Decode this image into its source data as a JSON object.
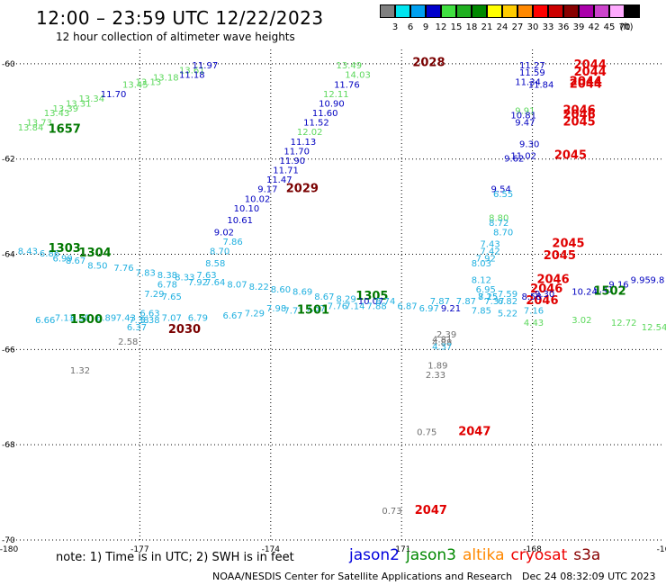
{
  "title": "12:00 – 23:59 UTC 12/22/2023",
  "subtitle": "12 hour collection of altimeter wave heights",
  "color_scale": {
    "unit": "(ft)",
    "levels": [
      {
        "label": "3",
        "color": "#808080"
      },
      {
        "label": "6",
        "color": "#00e5f0"
      },
      {
        "label": "9",
        "color": "#00a0f0"
      },
      {
        "label": "12",
        "color": "#0000cc"
      },
      {
        "label": "15",
        "color": "#40e040"
      },
      {
        "label": "18",
        "color": "#20b020"
      },
      {
        "label": "21",
        "color": "#008800"
      },
      {
        "label": "24",
        "color": "#ffff00"
      },
      {
        "label": "27",
        "color": "#ffcc00"
      },
      {
        "label": "30",
        "color": "#ff8800"
      },
      {
        "label": "33",
        "color": "#ff0000"
      },
      {
        "label": "36",
        "color": "#cc0000"
      },
      {
        "label": "39",
        "color": "#880000"
      },
      {
        "label": "42",
        "color": "#aa00aa"
      },
      {
        "label": "45",
        "color": "#cc44cc"
      },
      {
        "label": "70",
        "color": "#ffaaff"
      },
      {
        "label": "",
        "color": "#000000"
      }
    ]
  },
  "map": {
    "lon_min": -180,
    "lon_max": -165,
    "lat_min": -70,
    "lat_max": -59.7,
    "lon_labels": [
      {
        "lon": -180,
        "label": "-180"
      },
      {
        "lon": -177,
        "label": "-177"
      },
      {
        "lon": -174,
        "label": "-174"
      },
      {
        "lon": -171,
        "label": "-171"
      },
      {
        "lon": -168,
        "label": "-168"
      },
      {
        "lon": -165,
        "label": "-16"
      }
    ],
    "lat_labels": [
      {
        "lat": -60,
        "label": "-60"
      },
      {
        "lat": -62,
        "label": "-62"
      },
      {
        "lat": -64,
        "label": "-64"
      },
      {
        "lat": -66,
        "label": "-66"
      },
      {
        "lat": -68,
        "label": "-68"
      },
      {
        "lat": -70,
        "label": "-70"
      }
    ]
  },
  "colors": {
    "grey": "#707070",
    "cyan": "#20b0e0",
    "blue": "#0000c0",
    "lightgreen": "#5cd85c",
    "green": "#007700",
    "darkred": "#7a0000",
    "red": "#e00000"
  },
  "observations": [
    {
      "lon": -179.8,
      "lat": -61.4,
      "text": "13.84",
      "c": "lightgreen"
    },
    {
      "lon": -179.6,
      "lat": -61.3,
      "text": "13.73",
      "c": "lightgreen"
    },
    {
      "lon": -179.2,
      "lat": -61.1,
      "text": "13.43",
      "c": "lightgreen"
    },
    {
      "lon": -179.0,
      "lat": -61.0,
      "text": "13.39",
      "c": "lightgreen"
    },
    {
      "lon": -178.7,
      "lat": -60.9,
      "text": "13.31",
      "c": "lightgreen"
    },
    {
      "lon": -178.4,
      "lat": -60.8,
      "text": "13.34",
      "c": "lightgreen"
    },
    {
      "lon": -177.4,
      "lat": -60.5,
      "text": "13.45",
      "c": "lightgreen"
    },
    {
      "lon": -177.1,
      "lat": -60.45,
      "text": "13.13",
      "c": "lightgreen"
    },
    {
      "lon": -176.7,
      "lat": -60.35,
      "text": "13.18",
      "c": "lightgreen"
    },
    {
      "lon": -176.1,
      "lat": -60.2,
      "text": "13.61",
      "c": "lightgreen"
    },
    {
      "lon": -177.9,
      "lat": -60.7,
      "text": "11.70",
      "c": "blue"
    },
    {
      "lon": -176.1,
      "lat": -60.3,
      "text": "11.18",
      "c": "blue"
    },
    {
      "lon": -175.8,
      "lat": -60.1,
      "text": "11.97",
      "c": "blue"
    },
    {
      "lon": -179.1,
      "lat": -61.45,
      "text": "1657",
      "c": "green",
      "stat": true
    },
    {
      "lon": -172.5,
      "lat": -60.1,
      "text": "13.49",
      "c": "lightgreen"
    },
    {
      "lon": -172.3,
      "lat": -60.3,
      "text": "14.03",
      "c": "lightgreen"
    },
    {
      "lon": -170.75,
      "lat": -60.05,
      "text": "2028",
      "c": "darkred",
      "stat": true
    },
    {
      "lon": -172.55,
      "lat": -60.5,
      "text": "11.76",
      "c": "blue"
    },
    {
      "lon": -172.8,
      "lat": -60.7,
      "text": "12.11",
      "c": "lightgreen"
    },
    {
      "lon": -172.9,
      "lat": -60.9,
      "text": "10.90",
      "c": "blue"
    },
    {
      "lon": -173.05,
      "lat": -61.1,
      "text": "11.60",
      "c": "blue"
    },
    {
      "lon": -173.25,
      "lat": -61.3,
      "text": "11.52",
      "c": "blue"
    },
    {
      "lon": -173.4,
      "lat": -61.5,
      "text": "12.02",
      "c": "lightgreen"
    },
    {
      "lon": -173.55,
      "lat": -61.7,
      "text": "11.13",
      "c": "blue"
    },
    {
      "lon": -173.7,
      "lat": -61.9,
      "text": "11.70",
      "c": "blue"
    },
    {
      "lon": -173.8,
      "lat": -62.1,
      "text": "11.90",
      "c": "blue"
    },
    {
      "lon": -173.95,
      "lat": -62.3,
      "text": "11.71",
      "c": "blue"
    },
    {
      "lon": -174.1,
      "lat": -62.5,
      "text": "11.47",
      "c": "blue"
    },
    {
      "lon": -174.3,
      "lat": -62.7,
      "text": "9.17",
      "c": "blue"
    },
    {
      "lon": -173.65,
      "lat": -62.7,
      "text": "2029",
      "c": "darkred",
      "stat": true
    },
    {
      "lon": -174.6,
      "lat": -62.9,
      "text": "10.02",
      "c": "blue"
    },
    {
      "lon": -174.85,
      "lat": -63.1,
      "text": "10.10",
      "c": "blue"
    },
    {
      "lon": -175.0,
      "lat": -63.35,
      "text": "10.61",
      "c": "blue"
    },
    {
      "lon": -175.3,
      "lat": -63.6,
      "text": "9.02",
      "c": "blue"
    },
    {
      "lon": -175.1,
      "lat": -63.8,
      "text": "7.86",
      "c": "cyan"
    },
    {
      "lon": -175.4,
      "lat": -64.0,
      "text": "8.70",
      "c": "cyan"
    },
    {
      "lon": -175.5,
      "lat": -64.25,
      "text": "8.58",
      "c": "cyan"
    },
    {
      "lon": -175.7,
      "lat": -64.5,
      "text": "7.63",
      "c": "cyan"
    },
    {
      "lon": -179.8,
      "lat": -64.0,
      "text": "8.43",
      "c": "cyan"
    },
    {
      "lon": -179.3,
      "lat": -64.05,
      "text": "6.86",
      "c": "cyan"
    },
    {
      "lon": -179.0,
      "lat": -64.15,
      "text": "6.99",
      "c": "cyan"
    },
    {
      "lon": -178.7,
      "lat": -64.2,
      "text": "8.67",
      "c": "cyan"
    },
    {
      "lon": -178.2,
      "lat": -64.3,
      "text": "8.50",
      "c": "cyan"
    },
    {
      "lon": -177.6,
      "lat": -64.35,
      "text": "7.76",
      "c": "cyan"
    },
    {
      "lon": -177.1,
      "lat": -64.45,
      "text": "7.83",
      "c": "cyan"
    },
    {
      "lon": -176.6,
      "lat": -64.5,
      "text": "8.38",
      "c": "cyan"
    },
    {
      "lon": -176.2,
      "lat": -64.55,
      "text": "8.33",
      "c": "cyan"
    },
    {
      "lon": -175.9,
      "lat": -64.65,
      "text": "7.92",
      "c": "cyan"
    },
    {
      "lon": -175.5,
      "lat": -64.65,
      "text": "7.64",
      "c": "cyan"
    },
    {
      "lon": -175.0,
      "lat": -64.7,
      "text": "8.07",
      "c": "cyan"
    },
    {
      "lon": -174.5,
      "lat": -64.75,
      "text": "8.22",
      "c": "cyan"
    },
    {
      "lon": -174.0,
      "lat": -64.8,
      "text": "8.60",
      "c": "cyan"
    },
    {
      "lon": -173.5,
      "lat": -64.85,
      "text": "8.69",
      "c": "cyan"
    },
    {
      "lon": -173.0,
      "lat": -64.95,
      "text": "8.67",
      "c": "cyan"
    },
    {
      "lon": -172.5,
      "lat": -65.0,
      "text": "8.29",
      "c": "cyan"
    },
    {
      "lon": -179.1,
      "lat": -63.95,
      "text": "1303",
      "c": "green",
      "stat": true
    },
    {
      "lon": -178.4,
      "lat": -64.05,
      "text": "1304",
      "c": "green",
      "stat": true
    },
    {
      "lon": -172.05,
      "lat": -64.95,
      "text": "1305",
      "c": "green",
      "stat": true
    },
    {
      "lon": -172.0,
      "lat": -65.05,
      "text": "10.07",
      "c": "blue"
    },
    {
      "lon": -171.6,
      "lat": -65.05,
      "text": "8.74",
      "c": "cyan"
    },
    {
      "lon": -171.1,
      "lat": -65.15,
      "text": "6.87",
      "c": "cyan"
    },
    {
      "lon": -170.6,
      "lat": -65.2,
      "text": "6.97",
      "c": "cyan"
    },
    {
      "lon": -170.35,
      "lat": -65.05,
      "text": "7.87",
      "c": "cyan"
    },
    {
      "lon": -169.75,
      "lat": -65.05,
      "text": "7.87",
      "c": "cyan"
    },
    {
      "lon": -170.1,
      "lat": -65.2,
      "text": "9.21",
      "c": "blue"
    },
    {
      "lon": -169.25,
      "lat": -64.95,
      "text": "8.25",
      "c": "cyan"
    },
    {
      "lon": -168.8,
      "lat": -64.9,
      "text": "7.59",
      "c": "cyan"
    },
    {
      "lon": -169.4,
      "lat": -65.25,
      "text": "7.85",
      "c": "cyan"
    },
    {
      "lon": -168.8,
      "lat": -65.3,
      "text": "5.22",
      "c": "cyan"
    },
    {
      "lon": -168.2,
      "lat": -65.25,
      "text": "7.16",
      "c": "cyan"
    },
    {
      "lon": -168.2,
      "lat": -65.5,
      "text": "4.43",
      "c": "lightgreen"
    },
    {
      "lon": -167.1,
      "lat": -65.45,
      "text": "3.02",
      "c": "lightgreen"
    },
    {
      "lon": -166.2,
      "lat": -65.5,
      "text": "12.72",
      "c": "lightgreen"
    },
    {
      "lon": -165.5,
      "lat": -65.6,
      "text": "12.54",
      "c": "lightgreen"
    },
    {
      "lon": -176.9,
      "lat": -64.9,
      "text": "7.29",
      "c": "cyan"
    },
    {
      "lon": -176.6,
      "lat": -64.7,
      "text": "6.78",
      "c": "cyan"
    },
    {
      "lon": -176.5,
      "lat": -64.95,
      "text": "7.65",
      "c": "cyan"
    },
    {
      "lon": -177.0,
      "lat": -65.3,
      "text": "6.63",
      "c": "cyan"
    },
    {
      "lon": -176.5,
      "lat": -65.4,
      "text": "7.07",
      "c": "cyan"
    },
    {
      "lon": -175.9,
      "lat": -65.4,
      "text": "6.79",
      "c": "cyan"
    },
    {
      "lon": -175.1,
      "lat": -65.35,
      "text": "6.67",
      "c": "cyan"
    },
    {
      "lon": -174.6,
      "lat": -65.3,
      "text": "7.29",
      "c": "cyan"
    },
    {
      "lon": -174.1,
      "lat": -65.2,
      "text": "7.98",
      "c": "cyan"
    },
    {
      "lon": -173.7,
      "lat": -65.25,
      "text": "7.71",
      "c": "cyan"
    },
    {
      "lon": -173.2,
      "lat": -65.2,
      "text": "7.57",
      "c": "cyan"
    },
    {
      "lon": -172.7,
      "lat": -65.15,
      "text": "7.76",
      "c": "cyan"
    },
    {
      "lon": -172.3,
      "lat": -65.15,
      "text": "7.14",
      "c": "cyan"
    },
    {
      "lon": -171.8,
      "lat": -65.15,
      "text": "7.88",
      "c": "cyan"
    },
    {
      "lon": -173.4,
      "lat": -65.25,
      "text": "1501",
      "c": "green",
      "stat": true
    },
    {
      "lon": -179.4,
      "lat": -65.45,
      "text": "6.66",
      "c": "cyan"
    },
    {
      "lon": -178.95,
      "lat": -65.4,
      "text": "7.13",
      "c": "cyan"
    },
    {
      "lon": -178.6,
      "lat": -65.4,
      "text": "6.30",
      "c": "cyan"
    },
    {
      "lon": -178.0,
      "lat": -65.4,
      "text": "6.89",
      "c": "cyan"
    },
    {
      "lon": -177.55,
      "lat": -65.4,
      "text": "7.43",
      "c": "cyan"
    },
    {
      "lon": -177.25,
      "lat": -65.45,
      "text": "7.38",
      "c": "cyan"
    },
    {
      "lon": -178.6,
      "lat": -65.45,
      "text": "1500",
      "c": "green",
      "stat": true
    },
    {
      "lon": -177.0,
      "lat": -65.45,
      "text": "5.38",
      "c": "cyan"
    },
    {
      "lon": -177.3,
      "lat": -65.6,
      "text": "6.37",
      "c": "cyan"
    },
    {
      "lon": -176.35,
      "lat": -65.65,
      "text": "2030",
      "c": "darkred",
      "stat": true
    },
    {
      "lon": -177.5,
      "lat": -65.9,
      "text": "2.58",
      "c": "grey"
    },
    {
      "lon": -178.6,
      "lat": -66.5,
      "text": "1.32",
      "c": "grey"
    },
    {
      "lon": -168.3,
      "lat": -60.1,
      "text": "11.27",
      "c": "blue"
    },
    {
      "lon": -168.3,
      "lat": -60.25,
      "text": "11.59",
      "c": "blue"
    },
    {
      "lon": -168.4,
      "lat": -60.45,
      "text": "11.34",
      "c": "blue"
    },
    {
      "lon": -168.1,
      "lat": -60.5,
      "text": "11.84",
      "c": "blue"
    },
    {
      "lon": -167.05,
      "lat": -60.1,
      "text": "2044",
      "c": "red",
      "stat": true
    },
    {
      "lon": -167.05,
      "lat": -60.25,
      "text": "2044",
      "c": "red",
      "stat": true
    },
    {
      "lon": -167.15,
      "lat": -60.45,
      "text": "2044",
      "c": "red",
      "stat": true
    },
    {
      "lon": -167.15,
      "lat": -60.5,
      "text": "2044",
      "c": "red",
      "stat": true
    },
    {
      "lon": -168.4,
      "lat": -61.05,
      "text": "9.91",
      "c": "lightgreen"
    },
    {
      "lon": -168.5,
      "lat": -61.15,
      "text": "10.81",
      "c": "blue"
    },
    {
      "lon": -168.4,
      "lat": -61.3,
      "text": "9.47",
      "c": "blue"
    },
    {
      "lon": -167.3,
      "lat": -61.05,
      "text": "2046",
      "c": "red",
      "stat": true
    },
    {
      "lon": -167.3,
      "lat": -61.15,
      "text": "2046",
      "c": "red",
      "stat": true
    },
    {
      "lon": -167.3,
      "lat": -61.3,
      "text": "2045",
      "c": "red",
      "stat": true
    },
    {
      "lon": -168.3,
      "lat": -61.75,
      "text": "9.30",
      "c": "blue"
    },
    {
      "lon": -168.5,
      "lat": -62.0,
      "text": "11.02",
      "c": "blue"
    },
    {
      "lon": -168.65,
      "lat": -62.05,
      "text": "9.62",
      "c": "blue"
    },
    {
      "lon": -167.5,
      "lat": -62.0,
      "text": "2045",
      "c": "red",
      "stat": true
    },
    {
      "lon": -168.95,
      "lat": -62.7,
      "text": "9.54",
      "c": "blue"
    },
    {
      "lon": -168.9,
      "lat": -62.8,
      "text": "6.55",
      "c": "cyan"
    },
    {
      "lon": -169.0,
      "lat": -63.3,
      "text": "8.80",
      "c": "lightgreen"
    },
    {
      "lon": -169.0,
      "lat": -63.4,
      "text": "8.72",
      "c": "cyan"
    },
    {
      "lon": -168.9,
      "lat": -63.6,
      "text": "8.70",
      "c": "cyan"
    },
    {
      "lon": -169.2,
      "lat": -63.85,
      "text": "7.43",
      "c": "cyan"
    },
    {
      "lon": -169.2,
      "lat": -64.0,
      "text": "7.42",
      "c": "cyan"
    },
    {
      "lon": -169.3,
      "lat": -64.15,
      "text": "7.92",
      "c": "cyan"
    },
    {
      "lon": -169.4,
      "lat": -64.25,
      "text": "8.03",
      "c": "cyan"
    },
    {
      "lon": -167.55,
      "lat": -63.85,
      "text": "2045",
      "c": "red",
      "stat": true
    },
    {
      "lon": -167.75,
      "lat": -64.1,
      "text": "2045",
      "c": "red",
      "stat": true
    },
    {
      "lon": -169.4,
      "lat": -64.6,
      "text": "8.12",
      "c": "cyan"
    },
    {
      "lon": -169.3,
      "lat": -64.8,
      "text": "6.95",
      "c": "cyan"
    },
    {
      "lon": -169.25,
      "lat": -64.95,
      "text": "7.15",
      "c": "cyan"
    },
    {
      "lon": -169.1,
      "lat": -65.05,
      "text": "7.37",
      "c": "cyan"
    },
    {
      "lon": -168.8,
      "lat": -65.05,
      "text": "6.82",
      "c": "cyan"
    },
    {
      "lon": -167.9,
      "lat": -64.6,
      "text": "2046",
      "c": "red",
      "stat": true
    },
    {
      "lon": -168.05,
      "lat": -64.8,
      "text": "2046",
      "c": "red",
      "stat": true
    },
    {
      "lon": -168.15,
      "lat": -65.05,
      "text": "2046",
      "c": "red",
      "stat": true
    },
    {
      "lon": -168.25,
      "lat": -64.95,
      "text": "8.58",
      "c": "blue"
    },
    {
      "lon": -167.95,
      "lat": -64.9,
      "text": "9.30",
      "c": "blue"
    },
    {
      "lon": -167.1,
      "lat": -64.85,
      "text": "10.24",
      "c": "blue"
    },
    {
      "lon": -166.6,
      "lat": -64.8,
      "text": "9.41",
      "c": "blue"
    },
    {
      "lon": -166.25,
      "lat": -64.7,
      "text": "9.16",
      "c": "blue"
    },
    {
      "lon": -165.75,
      "lat": -64.6,
      "text": "9.95",
      "c": "blue"
    },
    {
      "lon": -165.3,
      "lat": -64.6,
      "text": "9.8",
      "c": "blue"
    },
    {
      "lon": -166.6,
      "lat": -64.85,
      "text": "1502",
      "c": "green",
      "stat": true
    },
    {
      "lon": -170.2,
      "lat": -65.75,
      "text": "2.39",
      "c": "grey"
    },
    {
      "lon": -170.3,
      "lat": -65.85,
      "text": "4.81",
      "c": "grey"
    },
    {
      "lon": -170.3,
      "lat": -65.92,
      "text": "4.88",
      "c": "grey"
    },
    {
      "lon": -170.3,
      "lat": -66.0,
      "text": "4.37",
      "c": "cyan"
    },
    {
      "lon": -170.4,
      "lat": -66.4,
      "text": "1.89",
      "c": "grey"
    },
    {
      "lon": -170.45,
      "lat": -66.6,
      "text": "2.33",
      "c": "grey"
    },
    {
      "lon": -170.65,
      "lat": -67.8,
      "text": "0.75",
      "c": "grey"
    },
    {
      "lon": -169.7,
      "lat": -67.8,
      "text": "2047",
      "c": "red",
      "stat": true
    },
    {
      "lon": -171.45,
      "lat": -69.45,
      "text": "0.73",
      "c": "grey"
    },
    {
      "lon": -170.7,
      "lat": -69.45,
      "text": "2047",
      "c": "red",
      "stat": true
    }
  ],
  "note": "note:  1) Time is in UTC;  2) SWH is in feet",
  "legend": [
    {
      "name": "jason2",
      "color": "#0000dd"
    },
    {
      "name": "jason3",
      "color": "#008800"
    },
    {
      "name": "altika",
      "color": "#ff8800"
    },
    {
      "name": "cryosat",
      "color": "#ee0000"
    },
    {
      "name": "s3a",
      "color": "#880000"
    }
  ],
  "credit": "NOAA/NESDIS Center for Satellite Applications and Research",
  "timestamp": "Dec 24 08:32:09 UTC 2023"
}
